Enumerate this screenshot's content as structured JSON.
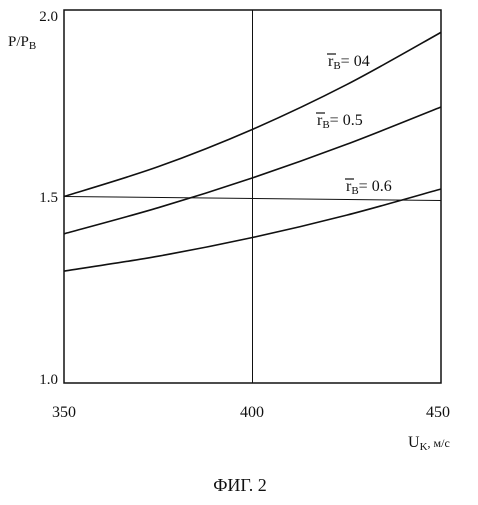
{
  "chart_data": {
    "type": "line",
    "title": "",
    "caption": "ФИГ. 2",
    "ylabel": {
      "main": "P/P",
      "sub": "B"
    },
    "xlabel": {
      "main": "U",
      "sub": "K",
      "unit": ", м/с"
    },
    "xlim": [
      350,
      450
    ],
    "ylim": [
      1.0,
      2.0
    ],
    "xticks": [
      "350",
      "400",
      "450"
    ],
    "yticks": [
      "1.0",
      "1.5",
      "2.0"
    ],
    "grid": {
      "vertical": [
        400
      ],
      "horizontal": [
        1.5
      ]
    },
    "series": [
      {
        "name": "r̄B= 04",
        "label": {
          "prefix": "r",
          "sub": "B",
          "suffix": "= 04"
        },
        "x": [
          350,
          375,
          400,
          425,
          450
        ],
        "y": [
          1.5,
          1.58,
          1.68,
          1.8,
          1.94
        ]
      },
      {
        "name": "r̄B= 0.5",
        "label": {
          "prefix": "r",
          "sub": "B",
          "suffix": "= 0.5"
        },
        "x": [
          350,
          375,
          400,
          425,
          450
        ],
        "y": [
          1.4,
          1.47,
          1.55,
          1.64,
          1.74
        ]
      },
      {
        "name": "r̄B= 0.6",
        "label": {
          "prefix": "r",
          "sub": "B",
          "suffix": "= 0.6"
        },
        "x": [
          350,
          375,
          400,
          425,
          450
        ],
        "y": [
          1.3,
          1.34,
          1.39,
          1.45,
          1.52
        ]
      }
    ]
  }
}
